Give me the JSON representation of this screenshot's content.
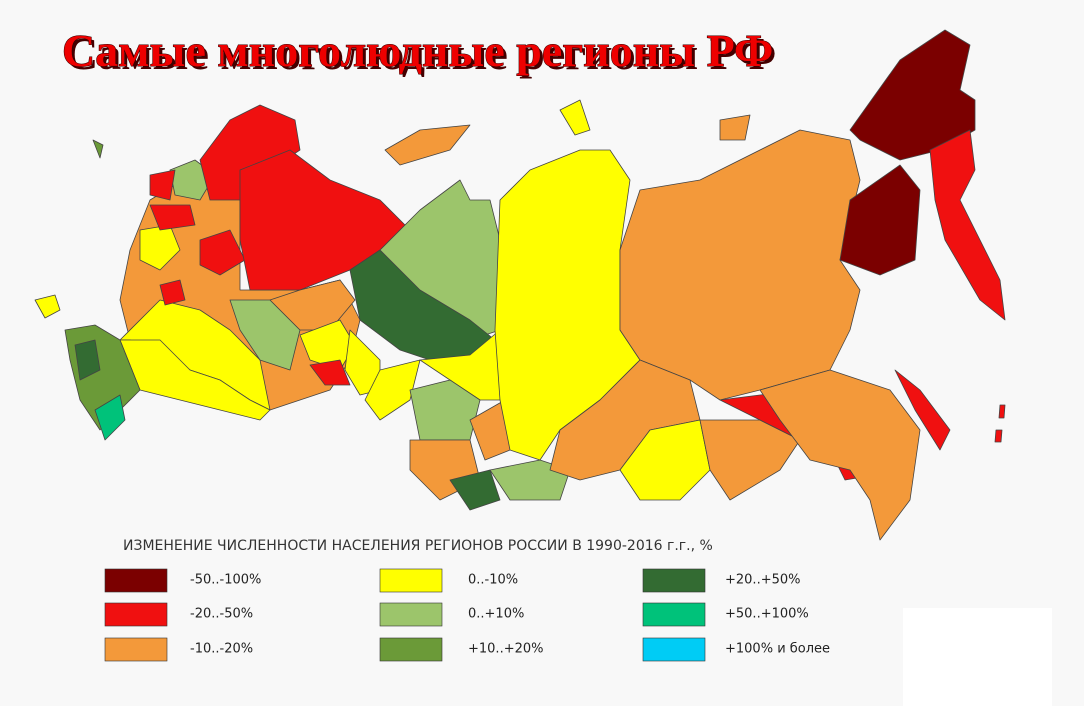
{
  "title": "Самые многолюдные регионы РФ",
  "legend": {
    "title": "ИЗМЕНЕНИЕ ЧИСЛЕННОСТИ НАСЕЛЕНИЯ РЕГИОНОВ РОССИИ В 1990-2016 г.г., %",
    "items": [
      {
        "label": "-50..-100%",
        "color": "#7b0000"
      },
      {
        "label": "-20..-50%",
        "color": "#f01010"
      },
      {
        "label": "-10..-20%",
        "color": "#f3993a"
      },
      {
        "label": "0..-10%",
        "color": "#ffff00"
      },
      {
        "label": "0..+10%",
        "color": "#9cc56b"
      },
      {
        "label": "+10..+20%",
        "color": "#6b9a38"
      },
      {
        "label": "+20..+50%",
        "color": "#336b32"
      },
      {
        "label": "+50..+100%",
        "color": "#00c27a"
      },
      {
        "label": "+100% и более",
        "color": "#00ccf5"
      }
    ]
  }
}
